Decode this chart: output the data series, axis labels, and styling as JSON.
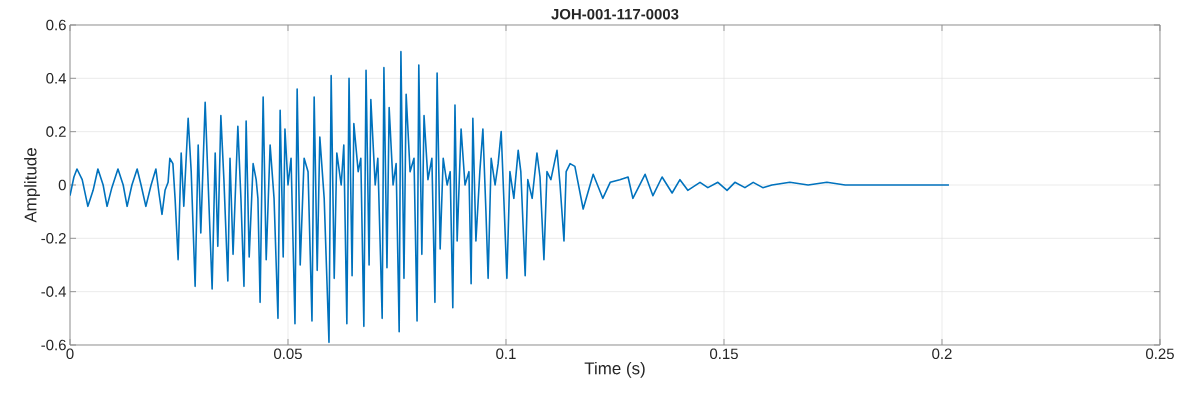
{
  "chart_data": {
    "type": "line",
    "title": "JOH-001-117-0003",
    "xlabel": "Time (s)",
    "ylabel": "Amplitude",
    "xlim": [
      0,
      0.25
    ],
    "xticks": [
      0,
      0.05,
      0.1,
      0.15,
      0.2,
      0.25
    ],
    "ylim": [
      -0.6,
      0.6
    ],
    "yticks": [
      -0.6,
      -0.4,
      -0.2,
      0,
      0.2,
      0.4,
      0.6
    ],
    "grid": true,
    "line_style": "solid",
    "marker": "none",
    "series": [
      {
        "color": "#0072bd",
        "x": [
          0,
          0.0009,
          0.0016,
          0.0028,
          0.0041,
          0.0053,
          0.0064,
          0.0076,
          0.0085,
          0.0096,
          0.011,
          0.0122,
          0.0131,
          0.0142,
          0.0154,
          0.0163,
          0.0174,
          0.0186,
          0.0197,
          0.0204,
          0.0211,
          0.0218,
          0.0225,
          0.0229,
          0.0236,
          0.0241,
          0.0248,
          0.0255,
          0.0261,
          0.0271,
          0.0278,
          0.0287,
          0.0294,
          0.03,
          0.031,
          0.0317,
          0.0326,
          0.0333,
          0.0339,
          0.0346,
          0.0353,
          0.0362,
          0.0367,
          0.0374,
          0.0385,
          0.0392,
          0.0399,
          0.0404,
          0.0411,
          0.042,
          0.0427,
          0.0431,
          0.0436,
          0.0443,
          0.045,
          0.0459,
          0.0468,
          0.0477,
          0.0482,
          0.0489,
          0.0493,
          0.05,
          0.0507,
          0.0516,
          0.0521,
          0.0528,
          0.0537,
          0.0546,
          0.0555,
          0.056,
          0.0567,
          0.0573,
          0.0583,
          0.0594,
          0.0599,
          0.0606,
          0.0612,
          0.0622,
          0.0628,
          0.0635,
          0.064,
          0.0647,
          0.0651,
          0.0661,
          0.0667,
          0.0674,
          0.0679,
          0.0686,
          0.069,
          0.07,
          0.0706,
          0.0716,
          0.072,
          0.0727,
          0.0732,
          0.0741,
          0.0748,
          0.0755,
          0.0759,
          0.0766,
          0.0771,
          0.078,
          0.0789,
          0.0796,
          0.08,
          0.0807,
          0.0812,
          0.0821,
          0.083,
          0.0837,
          0.0842,
          0.0849,
          0.0856,
          0.0865,
          0.0872,
          0.0878,
          0.0883,
          0.0888,
          0.0897,
          0.0906,
          0.0915,
          0.092,
          0.0924,
          0.0931,
          0.094,
          0.0947,
          0.0954,
          0.0959,
          0.0966,
          0.0975,
          0.0982,
          0.0989,
          0.0995,
          0.1002,
          0.1009,
          0.1018,
          0.1028,
          0.1034,
          0.1044,
          0.105,
          0.106,
          0.1071,
          0.1078,
          0.1087,
          0.1094,
          0.1103,
          0.1117,
          0.1124,
          0.1133,
          0.1138,
          0.1147,
          0.1158,
          0.1177,
          0.12,
          0.1222,
          0.1239,
          0.1261,
          0.128,
          0.1291,
          0.1319,
          0.1337,
          0.1358,
          0.1381,
          0.1399,
          0.1417,
          0.1445,
          0.1463,
          0.1486,
          0.1507,
          0.1525,
          0.1548,
          0.1567,
          0.1589,
          0.161,
          0.1651,
          0.1693,
          0.1736,
          0.1778,
          0.1819,
          0.1865,
          0.1927,
          0.1989,
          0.2016
        ],
        "values": [
          -0.04,
          0.03,
          0.06,
          0.02,
          -0.08,
          -0.02,
          0.06,
          0.0,
          -0.08,
          -0.01,
          0.06,
          0.0,
          -0.08,
          0.0,
          0.06,
          0.0,
          -0.08,
          0.0,
          0.06,
          -0.03,
          -0.11,
          -0.02,
          0.01,
          0.1,
          0.08,
          -0.05,
          -0.28,
          0.12,
          -0.08,
          0.25,
          0.05,
          -0.38,
          0.15,
          -0.18,
          0.31,
          0.0,
          -0.39,
          0.12,
          -0.23,
          0.26,
          0.02,
          -0.36,
          0.1,
          -0.26,
          0.22,
          -0.05,
          -0.38,
          0.24,
          -0.27,
          0.08,
          0.02,
          -0.05,
          -0.44,
          0.33,
          -0.28,
          0.15,
          -0.05,
          -0.5,
          0.28,
          -0.27,
          0.21,
          0.0,
          0.1,
          -0.52,
          0.36,
          -0.3,
          0.1,
          0.05,
          -0.51,
          0.33,
          -0.32,
          0.18,
          -0.05,
          -0.59,
          0.41,
          -0.35,
          0.12,
          0.0,
          0.15,
          -0.52,
          0.4,
          -0.34,
          0.23,
          0.05,
          0.1,
          -0.53,
          0.43,
          -0.3,
          0.32,
          0.0,
          0.1,
          -0.5,
          0.44,
          -0.31,
          0.29,
          0.0,
          0.08,
          -0.55,
          0.5,
          -0.35,
          0.34,
          0.05,
          0.1,
          -0.51,
          0.45,
          -0.26,
          0.26,
          0.02,
          0.1,
          -0.44,
          0.42,
          -0.24,
          0.1,
          0.0,
          0.05,
          -0.46,
          0.3,
          -0.21,
          0.21,
          0.0,
          0.05,
          -0.37,
          0.25,
          -0.21,
          0.05,
          0.21,
          -0.1,
          -0.35,
          0.1,
          0.0,
          0.08,
          0.2,
          -0.05,
          -0.35,
          0.05,
          -0.05,
          0.13,
          0.05,
          -0.34,
          0.02,
          -0.05,
          0.12,
          0.03,
          -0.28,
          0.05,
          0.02,
          0.13,
          0.0,
          -0.21,
          0.05,
          0.08,
          0.07,
          -0.09,
          0.04,
          -0.05,
          0.01,
          0.02,
          0.03,
          -0.05,
          0.04,
          -0.04,
          0.03,
          -0.03,
          0.02,
          -0.02,
          0.01,
          -0.01,
          0.01,
          -0.02,
          0.01,
          -0.01,
          0.01,
          -0.01,
          0.0,
          0.01,
          0.0,
          0.01,
          0.0,
          0.0,
          0.0,
          0.0,
          0.0,
          0.0
        ]
      }
    ]
  }
}
